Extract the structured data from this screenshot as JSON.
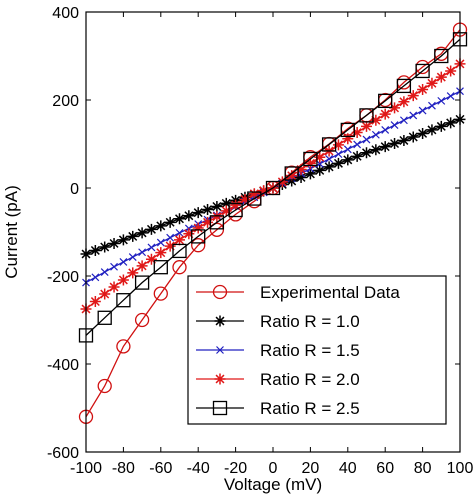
{
  "chart_data": {
    "type": "line",
    "title": "",
    "xlabel": "Voltage (mV)",
    "ylabel": "Current (pA)",
    "xlim": [
      -100,
      100
    ],
    "ylim": [
      -600,
      400
    ],
    "x_ticks": [
      -100,
      -80,
      -60,
      -40,
      -20,
      0,
      20,
      40,
      60,
      80,
      100
    ],
    "y_ticks": [
      -600,
      -400,
      -200,
      0,
      200,
      400
    ],
    "x_tick_labels": [
      "-100",
      "-80",
      "-60",
      "-40",
      "-20",
      "0",
      "20",
      "40",
      "60",
      "80",
      "100"
    ],
    "y_tick_labels": [
      "-600",
      "-400",
      "-200",
      "0",
      "200",
      "400"
    ],
    "grid": false,
    "legend_position": "bottom-right",
    "series": [
      {
        "name": "Experimental Data",
        "color": "#d01010",
        "marker": "circle",
        "x": [
          -100,
          -90,
          -80,
          -70,
          -60,
          -50,
          -40,
          -30,
          -20,
          -10,
          0,
          10,
          20,
          30,
          40,
          50,
          60,
          70,
          80,
          90,
          100
        ],
        "y": [
          -520,
          -450,
          -360,
          -300,
          -240,
          -180,
          -130,
          -95,
          -60,
          -30,
          0,
          35,
          70,
          100,
          135,
          165,
          200,
          240,
          275,
          305,
          360
        ]
      },
      {
        "name": "Ratio R = 1.0",
        "color": "#000000",
        "marker": "star",
        "x": [
          -100,
          -95,
          -90,
          -85,
          -80,
          -75,
          -70,
          -65,
          -60,
          -55,
          -50,
          -45,
          -40,
          -35,
          -30,
          -25,
          -20,
          -15,
          -10,
          -5,
          0,
          5,
          10,
          15,
          20,
          25,
          30,
          35,
          40,
          45,
          50,
          55,
          60,
          65,
          70,
          75,
          80,
          85,
          90,
          95,
          100
        ],
        "y": [
          -150,
          -142,
          -134,
          -126,
          -118,
          -110,
          -102,
          -94,
          -86,
          -78,
          -70,
          -63,
          -56,
          -49,
          -42,
          -35,
          -28,
          -21,
          -14,
          -7,
          0,
          8,
          16,
          24,
          32,
          40,
          48,
          56,
          64,
          72,
          80,
          87,
          94,
          101,
          108,
          116,
          124,
          132,
          140,
          148,
          156
        ]
      },
      {
        "name": "Ratio R = 1.5",
        "color": "#2020c0",
        "marker": "x",
        "x": [
          -100,
          -95,
          -90,
          -85,
          -80,
          -75,
          -70,
          -65,
          -60,
          -55,
          -50,
          -45,
          -40,
          -35,
          -30,
          -25,
          -20,
          -15,
          -10,
          -5,
          0,
          5,
          10,
          15,
          20,
          25,
          30,
          35,
          40,
          45,
          50,
          55,
          60,
          65,
          70,
          75,
          80,
          85,
          90,
          95,
          100
        ],
        "y": [
          -215,
          -203,
          -191,
          -179,
          -168,
          -157,
          -146,
          -135,
          -124,
          -113,
          -102,
          -92,
          -82,
          -72,
          -62,
          -52,
          -41,
          -31,
          -21,
          -10,
          0,
          11,
          22,
          33,
          44,
          55,
          66,
          77,
          88,
          99,
          110,
          121,
          132,
          143,
          154,
          165,
          176,
          187,
          198,
          209,
          220
        ]
      },
      {
        "name": "Ratio R = 2.0",
        "color": "#e01818",
        "marker": "star",
        "x": [
          -100,
          -95,
          -90,
          -85,
          -80,
          -75,
          -70,
          -65,
          -60,
          -55,
          -50,
          -45,
          -40,
          -35,
          -30,
          -25,
          -20,
          -15,
          -10,
          -5,
          0,
          5,
          10,
          15,
          20,
          25,
          30,
          35,
          40,
          45,
          50,
          55,
          60,
          65,
          70,
          75,
          80,
          85,
          90,
          95,
          100
        ],
        "y": [
          -275,
          -258,
          -241,
          -225,
          -209,
          -193,
          -177,
          -162,
          -147,
          -132,
          -118,
          -104,
          -91,
          -78,
          -65,
          -52,
          -39,
          -26,
          -13,
          -6,
          0,
          14,
          28,
          42,
          56,
          70,
          84,
          98,
          112,
          126,
          140,
          154,
          168,
          182,
          196,
          210,
          224,
          238,
          252,
          266,
          282
        ]
      },
      {
        "name": "Ratio R = 2.5",
        "color": "#000000",
        "marker": "square",
        "x": [
          -100,
          -90,
          -80,
          -70,
          -60,
          -50,
          -40,
          -30,
          -20,
          -10,
          0,
          10,
          20,
          30,
          40,
          50,
          60,
          70,
          80,
          90,
          100
        ],
        "y": [
          -335,
          -295,
          -255,
          -215,
          -180,
          -143,
          -110,
          -78,
          -50,
          -24,
          0,
          33,
          66,
          99,
          132,
          165,
          198,
          232,
          266,
          300,
          338
        ]
      }
    ]
  }
}
